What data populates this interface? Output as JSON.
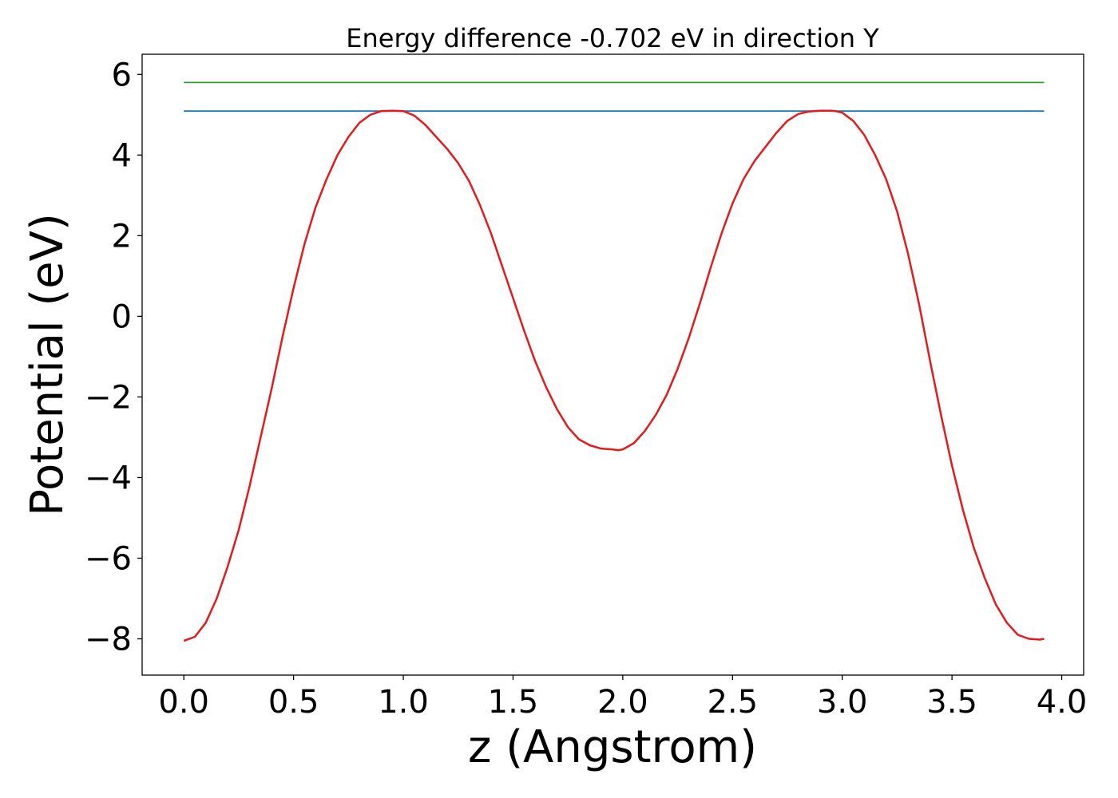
{
  "chart_data": {
    "type": "line",
    "title": "Energy difference -0.702 eV in direction Y",
    "xlabel": "z (Angstrom)",
    "ylabel": "Potential (eV)",
    "xlim": [
      -0.19,
      4.1
    ],
    "ylim": [
      -8.9,
      6.5
    ],
    "grid": false,
    "legend": "none",
    "xticks": [
      0.0,
      0.5,
      1.0,
      1.5,
      2.0,
      2.5,
      3.0,
      3.5,
      4.0
    ],
    "xtick_labels": [
      "0.0",
      "0.5",
      "1.0",
      "1.5",
      "2.0",
      "2.5",
      "3.0",
      "3.5",
      "4.0"
    ],
    "yticks": [
      6,
      4,
      2,
      0,
      -2,
      -4,
      -6,
      -8
    ],
    "ytick_labels": [
      "6",
      "4",
      "2",
      "0",
      "−2",
      "−4",
      "−6",
      "−8"
    ],
    "series": [
      {
        "color": "#2ca02c",
        "x": [
          0.0,
          3.92
        ],
        "y": [
          5.8,
          5.8
        ]
      },
      {
        "color": "#1f77b4",
        "x": [
          0.0,
          3.92
        ],
        "y": [
          5.09,
          5.09
        ]
      },
      {
        "color": "#e41a1c",
        "x": [
          0.0,
          0.05,
          0.1,
          0.15,
          0.2,
          0.25,
          0.3,
          0.35,
          0.4,
          0.45,
          0.5,
          0.55,
          0.6,
          0.65,
          0.7,
          0.75,
          0.8,
          0.85,
          0.9,
          0.95,
          1.0,
          1.05,
          1.1,
          1.15,
          1.2,
          1.25,
          1.3,
          1.35,
          1.4,
          1.45,
          1.5,
          1.55,
          1.6,
          1.65,
          1.7,
          1.75,
          1.8,
          1.85,
          1.9,
          1.95,
          1.98,
          2.0,
          2.05,
          2.1,
          2.15,
          2.2,
          2.25,
          2.3,
          2.35,
          2.4,
          2.45,
          2.5,
          2.55,
          2.6,
          2.65,
          2.7,
          2.75,
          2.8,
          2.85,
          2.9,
          2.95,
          2.97,
          3.0,
          3.05,
          3.1,
          3.15,
          3.2,
          3.25,
          3.3,
          3.35,
          3.4,
          3.45,
          3.5,
          3.55,
          3.6,
          3.65,
          3.7,
          3.75,
          3.8,
          3.85,
          3.9,
          3.92
        ],
        "y": [
          -8.05,
          -7.95,
          -7.6,
          -7.0,
          -6.2,
          -5.3,
          -4.2,
          -3.0,
          -1.8,
          -0.5,
          0.7,
          1.8,
          2.7,
          3.4,
          4.0,
          4.45,
          4.8,
          5.0,
          5.09,
          5.1,
          5.09,
          4.98,
          4.75,
          4.45,
          4.15,
          3.8,
          3.35,
          2.75,
          2.05,
          1.25,
          0.45,
          -0.35,
          -1.1,
          -1.75,
          -2.3,
          -2.75,
          -3.05,
          -3.2,
          -3.28,
          -3.3,
          -3.32,
          -3.3,
          -3.15,
          -2.85,
          -2.45,
          -1.95,
          -1.3,
          -0.55,
          0.3,
          1.2,
          2.05,
          2.8,
          3.4,
          3.85,
          4.2,
          4.55,
          4.85,
          5.02,
          5.08,
          5.1,
          5.1,
          5.09,
          5.05,
          4.85,
          4.5,
          4.0,
          3.4,
          2.6,
          1.55,
          0.3,
          -1.1,
          -2.45,
          -3.7,
          -4.8,
          -5.75,
          -6.5,
          -7.15,
          -7.6,
          -7.9,
          -8.0,
          -8.02,
          -8.0
        ]
      }
    ]
  }
}
